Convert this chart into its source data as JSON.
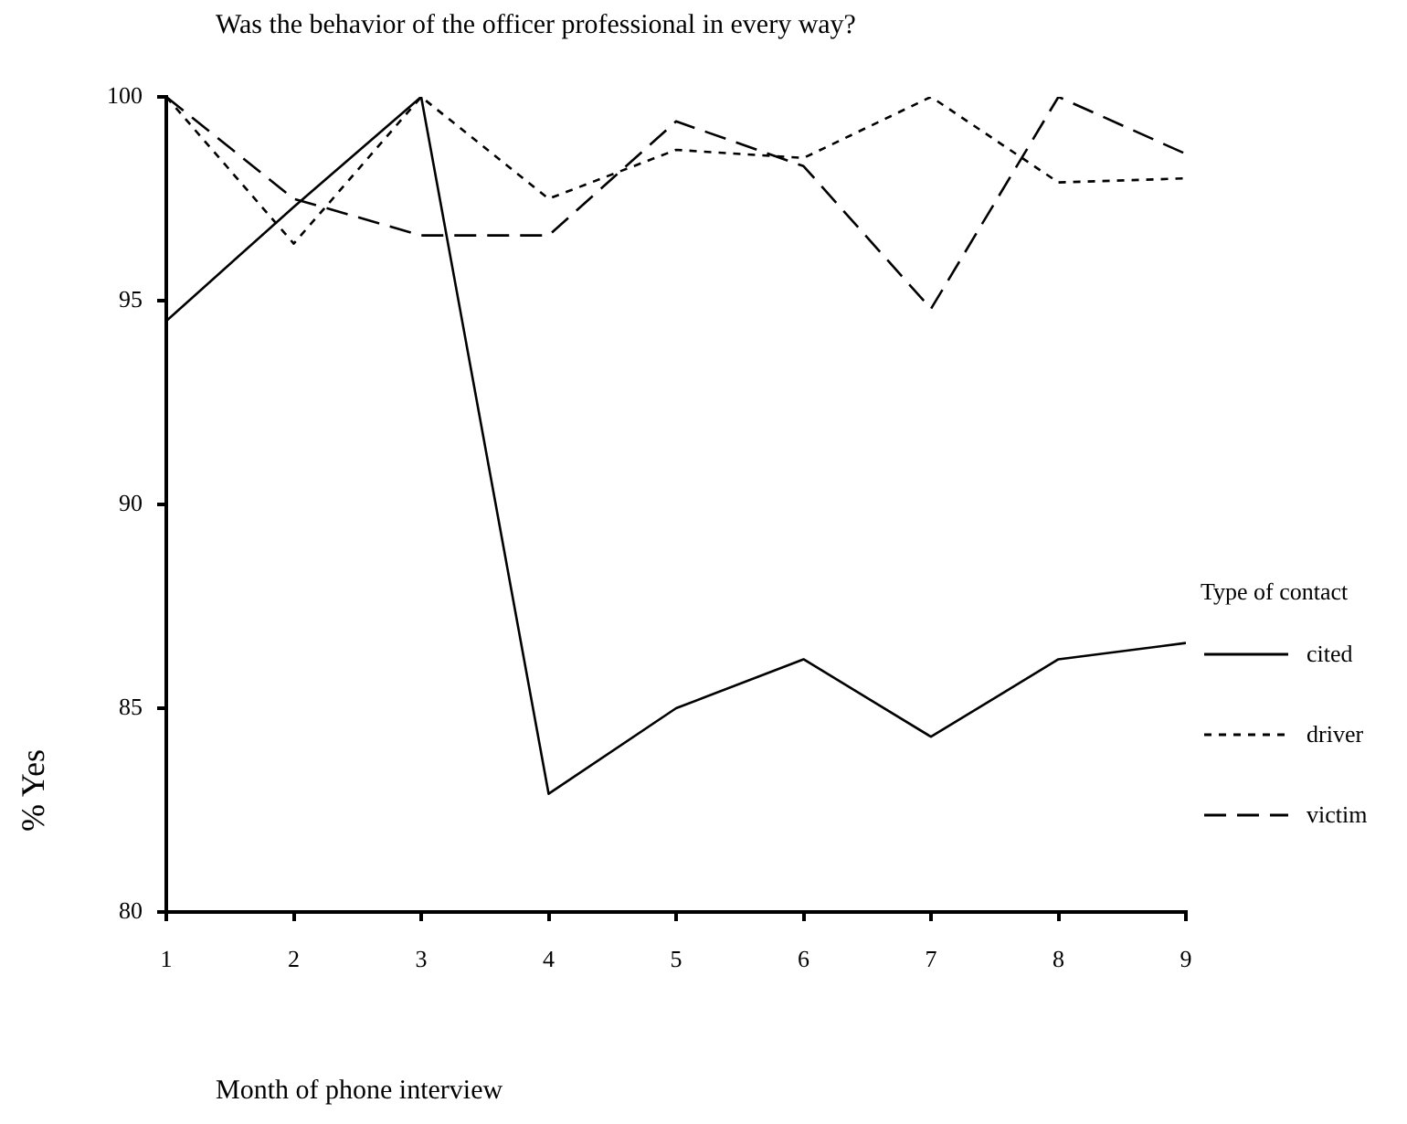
{
  "chart_data": {
    "type": "line",
    "title": "Was the behavior of the officer professional in every way?",
    "xlabel": "Month of phone interview",
    "ylabel": "% Yes",
    "legend_title": "Type of contact",
    "legend": "right",
    "grid": false,
    "marker": "none",
    "x": [
      1,
      2,
      3,
      4,
      5,
      6,
      7,
      8,
      9
    ],
    "xlim": [
      1,
      9
    ],
    "xticks": [
      1,
      2,
      3,
      4,
      5,
      6,
      7,
      8,
      9
    ],
    "ylim": [
      80,
      100
    ],
    "yticks": [
      80,
      85,
      90,
      95,
      100
    ],
    "series": [
      {
        "name": "cited",
        "color": "#000000",
        "line_style": "solid",
        "values": [
          94.5,
          97.3,
          100,
          82.9,
          85.0,
          86.2,
          84.3,
          86.2,
          86.6
        ]
      },
      {
        "name": "driver",
        "color": "#000000",
        "line_style": "dotted",
        "values": [
          100,
          96.4,
          100,
          97.5,
          98.7,
          98.5,
          100,
          97.9,
          98.0
        ]
      },
      {
        "name": "victim",
        "color": "#000000",
        "line_style": "dashed",
        "values": [
          100,
          97.5,
          96.6,
          96.6,
          99.4,
          98.3,
          94.8,
          100,
          98.6
        ]
      }
    ]
  }
}
